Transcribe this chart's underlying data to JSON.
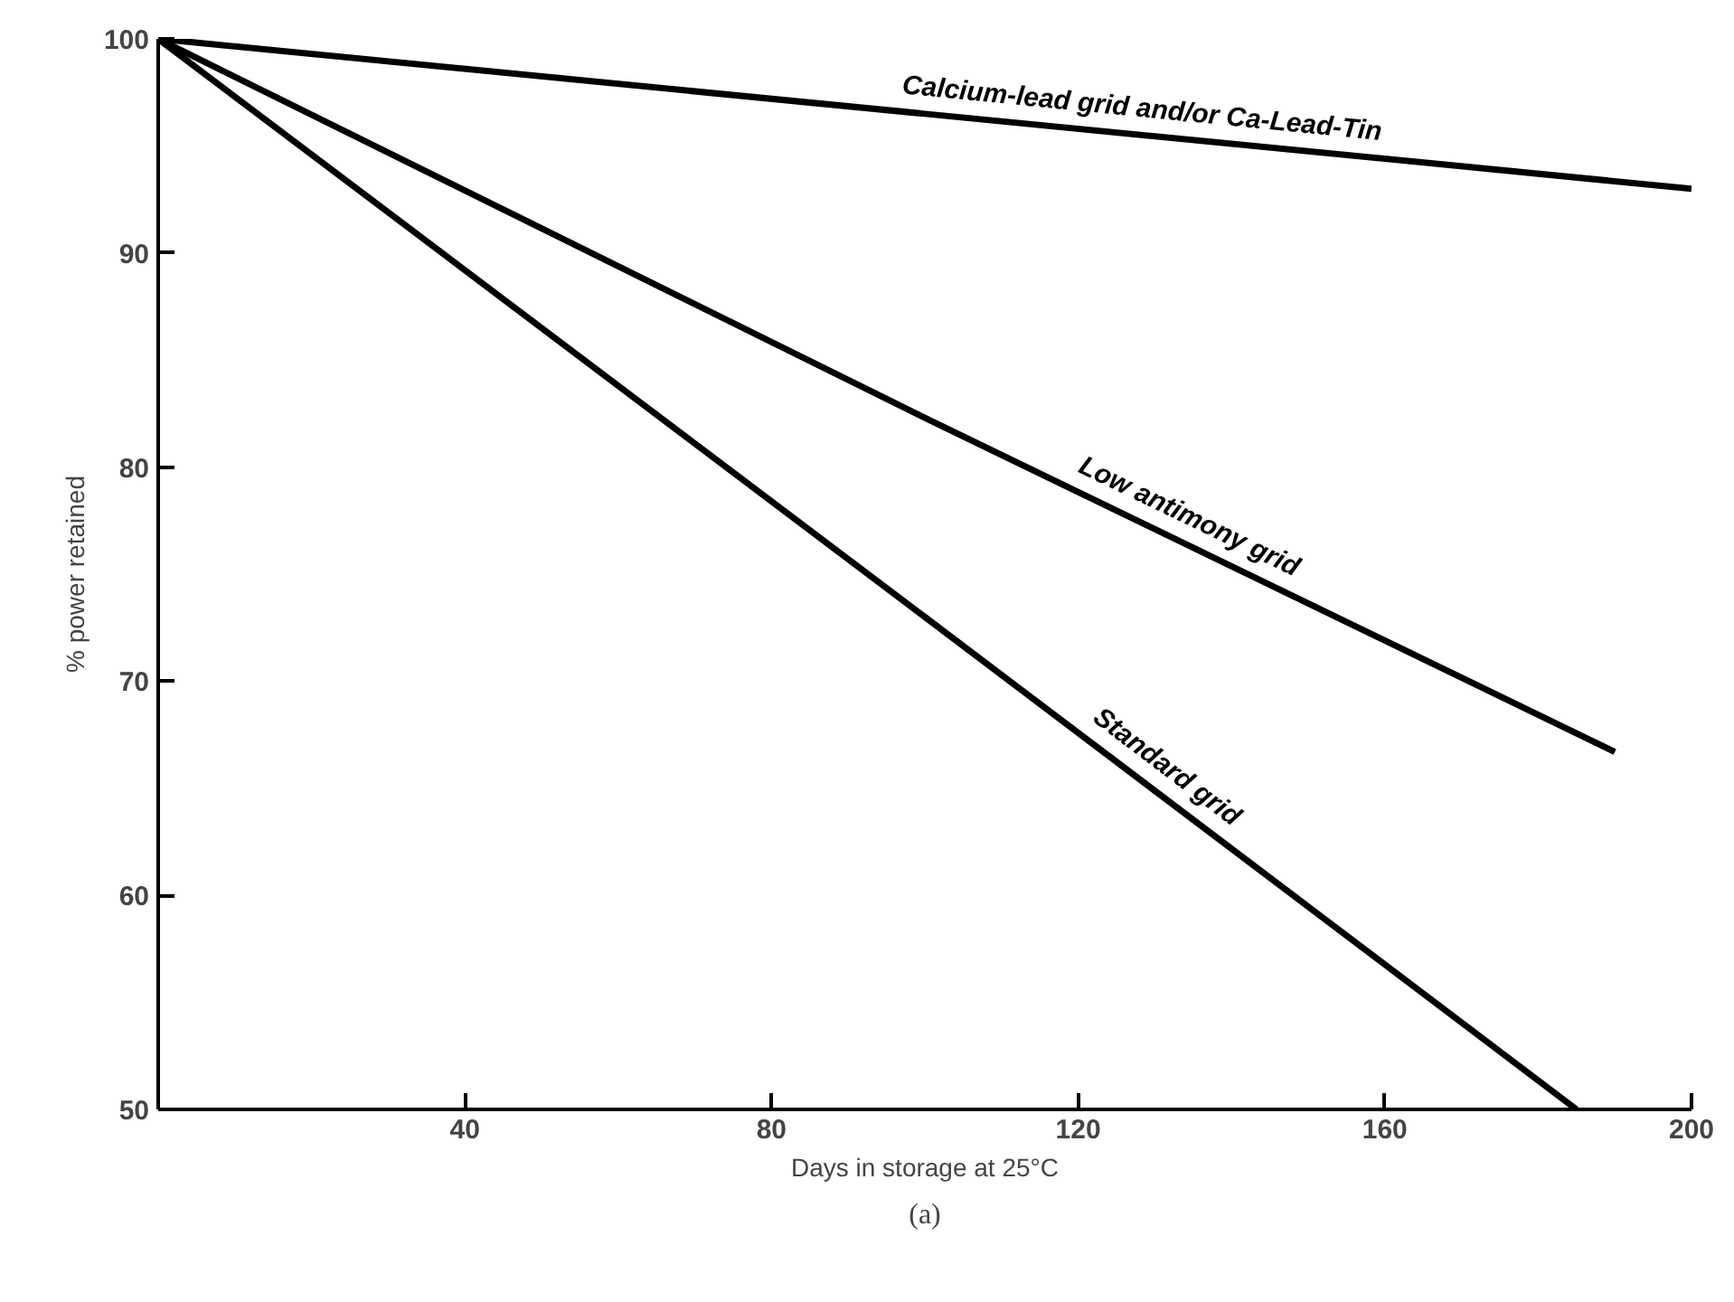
{
  "chart_data": {
    "type": "line",
    "xlabel": "Days in storage at 25°C",
    "ylabel": "% power retained",
    "xlim": [
      0,
      200
    ],
    "ylim": [
      50,
      100
    ],
    "xticks": [
      40,
      80,
      120,
      160,
      200
    ],
    "yticks": [
      50,
      60,
      70,
      80,
      90,
      100
    ],
    "grid": false,
    "legend": false,
    "marker": "none",
    "line_style": "solid",
    "series": [
      {
        "name": "Calcium-lead grid and/or Ca-Lead-Tin",
        "color": "#000000",
        "x": [
          0,
          100,
          200
        ],
        "values": [
          100,
          96.5,
          93
        ]
      },
      {
        "name": "Low antimony grid",
        "color": "#000000",
        "x": [
          0,
          100,
          190
        ],
        "values": [
          100,
          82.3,
          66.7
        ]
      },
      {
        "name": "Standard grid",
        "color": "#000000",
        "x": [
          0,
          100,
          185
        ],
        "values": [
          100,
          73,
          50
        ]
      }
    ],
    "annotations": [
      "(a)"
    ]
  }
}
